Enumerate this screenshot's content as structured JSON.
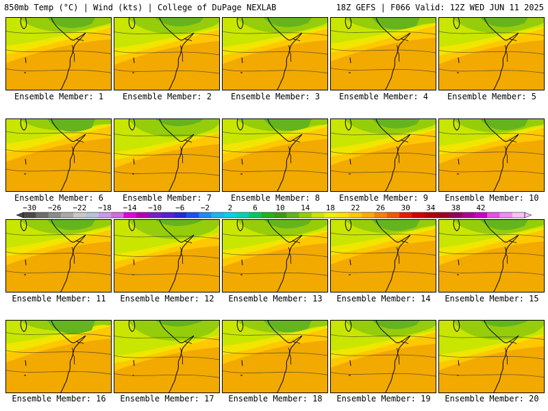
{
  "header": {
    "left": "850mb Temp (°C) | Wind (kts) | College of DuPage NEXLAB",
    "right": "18Z GEFS | F066 Valid: 12Z WED JUN 11 2025"
  },
  "members": [
    {
      "label": "Ensemble Member: 1",
      "warmth": 0.45
    },
    {
      "label": "Ensemble Member: 2",
      "warmth": 0.55
    },
    {
      "label": "Ensemble Member: 3",
      "warmth": 0.5
    },
    {
      "label": "Ensemble Member: 4",
      "warmth": 0.35
    },
    {
      "label": "Ensemble Member: 5",
      "warmth": 0.5
    },
    {
      "label": "Ensemble Member: 6",
      "warmth": 0.3
    },
    {
      "label": "Ensemble Member: 7",
      "warmth": 0.65
    },
    {
      "label": "Ensemble Member: 8",
      "warmth": 0.35
    },
    {
      "label": "Ensemble Member: 9",
      "warmth": 0.5
    },
    {
      "label": "Ensemble Member: 10",
      "warmth": 0.4
    },
    {
      "label": "Ensemble Member: 11",
      "warmth": 0.45
    },
    {
      "label": "Ensemble Member: 12",
      "warmth": 0.7
    },
    {
      "label": "Ensemble Member: 13",
      "warmth": 0.55
    },
    {
      "label": "Ensemble Member: 14",
      "warmth": 0.4
    },
    {
      "label": "Ensemble Member: 15",
      "warmth": 0.45
    },
    {
      "label": "Ensemble Member: 16",
      "warmth": 0.25
    },
    {
      "label": "Ensemble Member: 17",
      "warmth": 0.75
    },
    {
      "label": "Ensemble Member: 18",
      "warmth": 0.35
    },
    {
      "label": "Ensemble Member: 19",
      "warmth": 0.55
    },
    {
      "label": "Ensemble Member: 20",
      "warmth": 0.7
    }
  ],
  "colorbar": {
    "labels": [
      "−30",
      "−26",
      "−22",
      "−18",
      "−14",
      "−10",
      "−6",
      "−2",
      "2",
      "6",
      "10",
      "14",
      "18",
      "22",
      "26",
      "30",
      "34",
      "38",
      "42"
    ],
    "colors": [
      "#4a4a4a",
      "#6e6e6e",
      "#8c8c8c",
      "#a9a9a9",
      "#c8c8c8",
      "#b9c3d6",
      "#c89be6",
      "#d46be0",
      "#e000e0",
      "#b400b4",
      "#7b1ec8",
      "#5a1ed2",
      "#2828d8",
      "#1e50f0",
      "#1e8cf5",
      "#1eb4f0",
      "#00d2e6",
      "#00d2b4",
      "#00c864",
      "#1eb41e",
      "#3c9b14",
      "#64b41e",
      "#96cd0a",
      "#c8e600",
      "#f0f000",
      "#ffe100",
      "#ffc800",
      "#ffaa00",
      "#f58200",
      "#f05a00",
      "#e61e00",
      "#d20000",
      "#b40000",
      "#a00028",
      "#96005a",
      "#aa0096",
      "#c800c8",
      "#e650e6",
      "#f08cf0",
      "#f5c3f5"
    ]
  }
}
